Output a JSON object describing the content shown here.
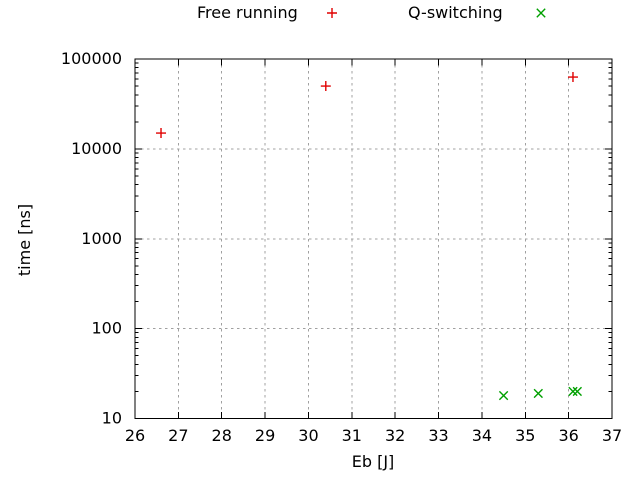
{
  "figure": {
    "background": "#ffffff",
    "text_color": "#000000",
    "border_color": "#000000",
    "grid_color": "#a0a0a0"
  },
  "chart_data": {
    "type": "scatter",
    "xlabel": "Eb [J]",
    "ylabel": "time [ns]",
    "xscale": "linear",
    "yscale": "log",
    "xlim": [
      26,
      37
    ],
    "ylim": [
      10,
      100000
    ],
    "x_ticks": [
      26,
      27,
      28,
      29,
      30,
      31,
      32,
      33,
      34,
      35,
      36,
      37
    ],
    "y_ticks": [
      10,
      100,
      1000,
      10000,
      100000
    ],
    "y_tick_labels": [
      "10",
      "100",
      "1000",
      "10000",
      "100000"
    ],
    "grid": true,
    "legend_position": "top-center",
    "series": [
      {
        "name": "Free running",
        "marker": "plus",
        "color": "#e00000",
        "points": [
          [
            26.6,
            15000
          ],
          [
            30.4,
            50000
          ],
          [
            36.1,
            63000
          ]
        ]
      },
      {
        "name": "Q-switching",
        "marker": "cross",
        "color": "#00a000",
        "points": [
          [
            34.5,
            18
          ],
          [
            35.3,
            19
          ],
          [
            36.1,
            20
          ],
          [
            36.2,
            20
          ]
        ]
      }
    ]
  }
}
